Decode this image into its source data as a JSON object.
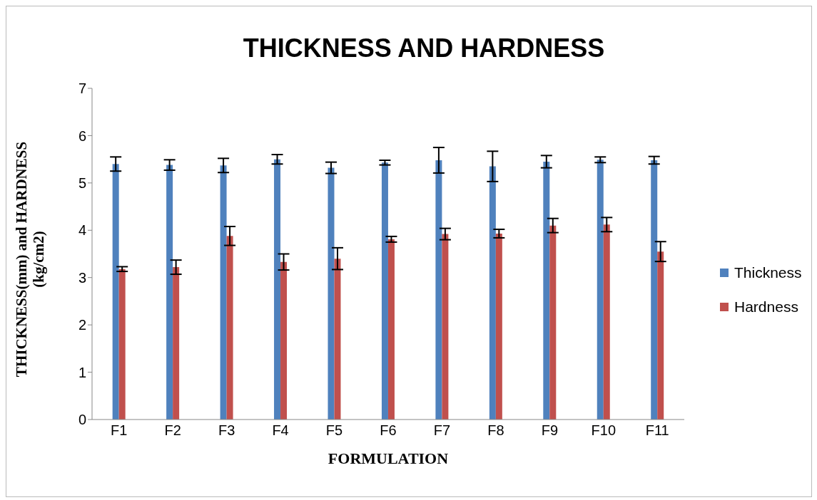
{
  "chart_data": {
    "type": "bar",
    "title": "THICKNESS AND HARDNESS",
    "xlabel": "FORMULATION",
    "ylabel": "THICKNESS(mm) and HARDNESS\n(kg/cm2)",
    "categories": [
      "F1",
      "F2",
      "F3",
      "F4",
      "F5",
      "F6",
      "F7",
      "F8",
      "F9",
      "F10",
      "F11"
    ],
    "series": [
      {
        "name": "Thickness",
        "color": "#4f81bd",
        "values": [
          5.4,
          5.38,
          5.37,
          5.5,
          5.32,
          5.43,
          5.48,
          5.35,
          5.45,
          5.49,
          5.48
        ],
        "errors": [
          0.15,
          0.11,
          0.15,
          0.1,
          0.12,
          0.05,
          0.27,
          0.32,
          0.13,
          0.06,
          0.08
        ]
      },
      {
        "name": "Hardness",
        "color": "#c0504d",
        "values": [
          3.18,
          3.22,
          3.88,
          3.33,
          3.4,
          3.81,
          3.92,
          3.93,
          4.1,
          4.12,
          3.55
        ],
        "errors": [
          0.05,
          0.15,
          0.2,
          0.17,
          0.23,
          0.06,
          0.12,
          0.09,
          0.15,
          0.15,
          0.21
        ]
      }
    ],
    "ylim": [
      0,
      7
    ],
    "yticks": [
      0,
      1,
      2,
      3,
      4,
      5,
      6,
      7
    ],
    "grid": false,
    "legend": "right"
  }
}
